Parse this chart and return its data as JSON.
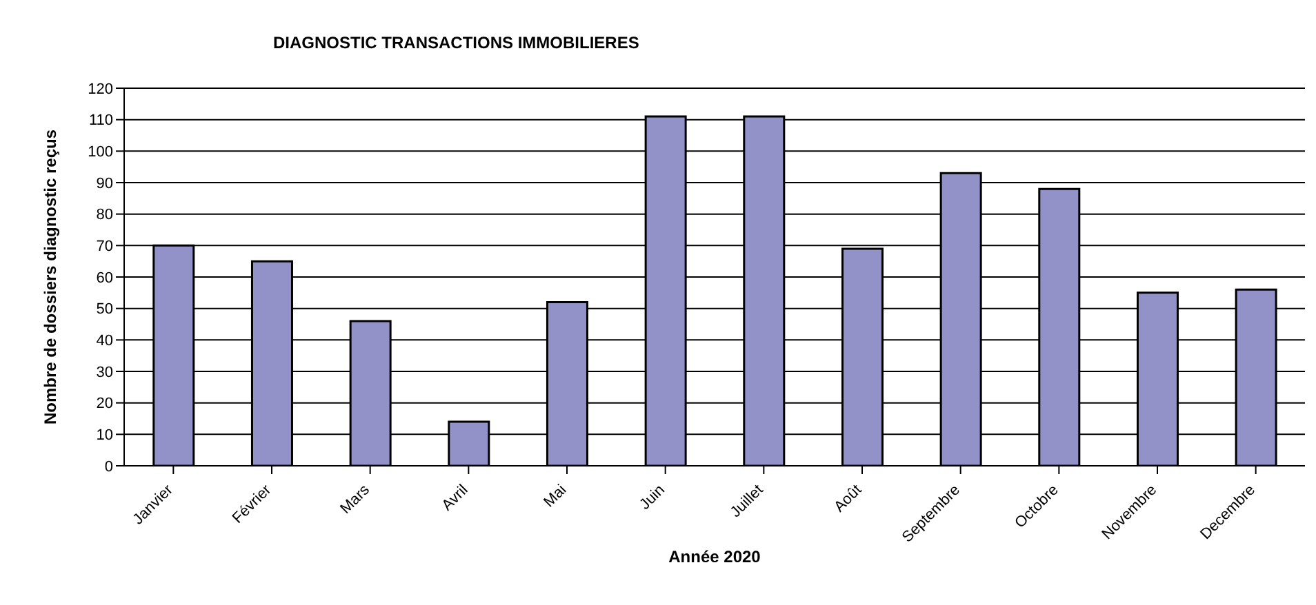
{
  "chart_data": {
    "type": "bar",
    "title": "DIAGNOSTIC TRANSACTIONS IMMOBILIERES",
    "xlabel": "Année 2020",
    "ylabel": "Nombre de dossiers diagnostic reçus",
    "categories": [
      "Janvier",
      "Février",
      "Mars",
      "Avril",
      "Mai",
      "Juin",
      "Juillet",
      "Août",
      "Septembre",
      "Octobre",
      "Novembre",
      "Decembre"
    ],
    "values": [
      70,
      65,
      46,
      14,
      52,
      111,
      111,
      69,
      93,
      88,
      55,
      56
    ],
    "color": "#9292c8",
    "ylim": [
      0,
      120
    ],
    "yticks": [
      0,
      10,
      20,
      30,
      40,
      50,
      60,
      70,
      80,
      90,
      100,
      110,
      120
    ],
    "grid": "y"
  }
}
